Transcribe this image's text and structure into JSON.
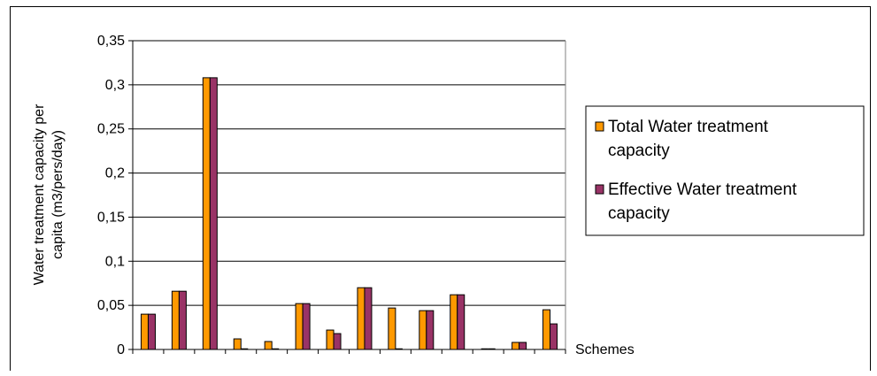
{
  "chart_data": {
    "type": "bar",
    "title": "",
    "xlabel": "Schemes",
    "ylabel": "Water treatment capacity per capita (m3/pers/day)",
    "ylabel_lines": [
      "Water treatment capacity per",
      "capita (m3/pers/day)"
    ],
    "ylim": [
      0,
      0.35
    ],
    "yticks": [
      "0",
      "0,05",
      "0,1",
      "0,15",
      "0,2",
      "0,25",
      "0,3",
      "0,35"
    ],
    "ytick_values": [
      0,
      0.05,
      0.1,
      0.15,
      0.2,
      0.25,
      0.3,
      0.35
    ],
    "grid": "horizontal",
    "legend_position": "right",
    "categories": [
      "",
      "",
      "",
      "",
      "",
      "",
      "",
      "",
      "",
      "",
      "",
      "",
      "",
      ""
    ],
    "series": [
      {
        "name": "Total Water treatment capacity",
        "legend_lines": [
          "Total Water treatment",
          "capacity"
        ],
        "color": "#FF9900",
        "values": [
          0.04,
          0.066,
          0.308,
          0.012,
          0.009,
          0.052,
          0.022,
          0.07,
          0.047,
          0.044,
          0.062,
          0.0,
          0.008,
          0.045
        ]
      },
      {
        "name": "Effective Water treatment capacity",
        "legend_lines": [
          "Effective Water treatment",
          "capacity"
        ],
        "color": "#993366",
        "values": [
          0.04,
          0.066,
          0.308,
          0.0,
          0.0,
          0.052,
          0.018,
          0.07,
          0.0,
          0.044,
          0.062,
          0.0,
          0.008,
          0.029
        ]
      }
    ]
  }
}
